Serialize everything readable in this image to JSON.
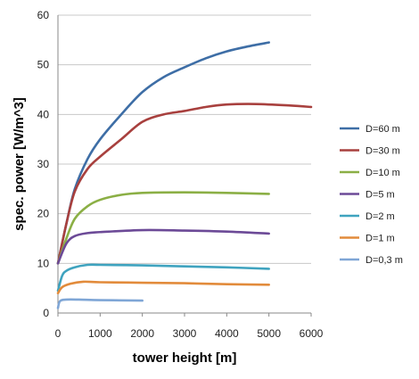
{
  "chart_data": {
    "type": "line",
    "xlabel": "tower height [m]",
    "ylabel": "spec. power [W/m^3]",
    "xlim": [
      0,
      6000
    ],
    "ylim": [
      0,
      60
    ],
    "xticks": [
      0,
      1000,
      2000,
      3000,
      4000,
      5000,
      6000
    ],
    "yticks": [
      0,
      10,
      20,
      30,
      40,
      50,
      60
    ],
    "grid": "horizontal",
    "legend_position": "right",
    "series": [
      {
        "name": "D=60 m",
        "color": "#3E6EA6",
        "points": [
          [
            0,
            10
          ],
          [
            200,
            18
          ],
          [
            400,
            25
          ],
          [
            700,
            31
          ],
          [
            1000,
            35
          ],
          [
            1500,
            40
          ],
          [
            2000,
            44.5
          ],
          [
            2500,
            47.5
          ],
          [
            3000,
            49.5
          ],
          [
            3500,
            51.3
          ],
          [
            4000,
            52.7
          ],
          [
            4500,
            53.7
          ],
          [
            5000,
            54.5
          ]
        ]
      },
      {
        "name": "D=30 m",
        "color": "#A8403E",
        "points": [
          [
            0,
            10
          ],
          [
            200,
            18
          ],
          [
            400,
            24.5
          ],
          [
            700,
            29
          ],
          [
            1000,
            31.5
          ],
          [
            1500,
            35
          ],
          [
            2000,
            38.5
          ],
          [
            2500,
            40
          ],
          [
            3000,
            40.7
          ],
          [
            3500,
            41.5
          ],
          [
            4000,
            42
          ],
          [
            4700,
            42.1
          ],
          [
            5500,
            41.8
          ],
          [
            6000,
            41.5
          ]
        ]
      },
      {
        "name": "D=10 m",
        "color": "#8BAF45",
        "points": [
          [
            0,
            10
          ],
          [
            200,
            15
          ],
          [
            400,
            19
          ],
          [
            700,
            21.5
          ],
          [
            1000,
            22.8
          ],
          [
            1500,
            23.8
          ],
          [
            2000,
            24.2
          ],
          [
            3000,
            24.3
          ],
          [
            4000,
            24.2
          ],
          [
            5000,
            24
          ]
        ]
      },
      {
        "name": "D=5 m",
        "color": "#6C4A97",
        "points": [
          [
            0,
            10
          ],
          [
            200,
            14
          ],
          [
            400,
            15.5
          ],
          [
            700,
            16.1
          ],
          [
            1000,
            16.3
          ],
          [
            2000,
            16.7
          ],
          [
            3000,
            16.6
          ],
          [
            4000,
            16.4
          ],
          [
            5000,
            16
          ]
        ]
      },
      {
        "name": "D=2 m",
        "color": "#3FA3BF",
        "points": [
          [
            0,
            4.5
          ],
          [
            100,
            7.5
          ],
          [
            200,
            8.5
          ],
          [
            400,
            9.2
          ],
          [
            700,
            9.7
          ],
          [
            1000,
            9.7
          ],
          [
            2000,
            9.6
          ],
          [
            3000,
            9.4
          ],
          [
            4000,
            9.2
          ],
          [
            5000,
            8.9
          ]
        ]
      },
      {
        "name": "D=1 m",
        "color": "#E28B3B",
        "points": [
          [
            0,
            4
          ],
          [
            100,
            5.2
          ],
          [
            300,
            5.9
          ],
          [
            600,
            6.3
          ],
          [
            1000,
            6.2
          ],
          [
            2000,
            6.1
          ],
          [
            3000,
            6
          ],
          [
            4000,
            5.8
          ],
          [
            5000,
            5.7
          ]
        ]
      },
      {
        "name": "D=0,3 m",
        "color": "#7FA6D6",
        "points": [
          [
            0,
            1
          ],
          [
            50,
            2.4
          ],
          [
            200,
            2.7
          ],
          [
            500,
            2.7
          ],
          [
            1000,
            2.6
          ],
          [
            2000,
            2.5
          ]
        ]
      }
    ]
  }
}
